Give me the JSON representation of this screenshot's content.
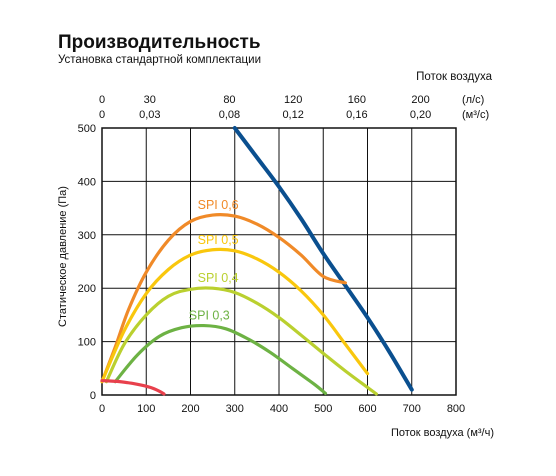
{
  "chart_data": {
    "type": "line",
    "title": "Производительность",
    "subtitle": "Установка стандартной комплектации",
    "xlabel": "Поток воздуха (м³/ч)",
    "ylabel": "Статическое давление (Па)",
    "top_axis_title": "Поток воздуха",
    "xlim": [
      0,
      800
    ],
    "ylim": [
      0,
      500
    ],
    "grid": true,
    "x_ticks": [
      "0",
      "100",
      "200",
      "300",
      "400",
      "500",
      "600",
      "700",
      "800"
    ],
    "y_ticks": [
      "0",
      "100",
      "200",
      "300",
      "400",
      "500"
    ],
    "top_ticks_ls": {
      "unit": "(л/с)",
      "labels": [
        "0",
        "30",
        "80",
        "120",
        "160",
        "200"
      ],
      "positions_m3h": [
        0,
        108,
        288,
        432,
        576,
        720
      ]
    },
    "top_ticks_m3s": {
      "unit": "(м³/с)",
      "labels": [
        "0",
        "0,03",
        "0,08",
        "0,12",
        "0,16",
        "0,20"
      ],
      "positions_m3h": [
        0,
        108,
        288,
        432,
        576,
        720
      ]
    },
    "colors": {
      "system": "#0a4f8f",
      "SPI 0,6": "#f08a28",
      "SPI 0,5": "#f9c70d",
      "SPI 0,4": "#bad02f",
      "SPI 0,3": "#6db244",
      "low": "#e8404c"
    },
    "series": [
      {
        "name": "",
        "color_key": "system",
        "x": [
          300,
          350,
          400,
          450,
          500,
          550,
          600,
          650,
          700
        ],
        "y": [
          500,
          445,
          390,
          330,
          265,
          205,
          145,
          80,
          10
        ]
      },
      {
        "name": "SPI 0,6",
        "color_key": "SPI 0,6",
        "x": [
          0,
          30,
          60,
          100,
          150,
          200,
          250,
          300,
          350,
          400,
          450,
          500,
          550
        ],
        "y": [
          25,
          90,
          160,
          230,
          290,
          325,
          337,
          335,
          320,
          295,
          262,
          222,
          210
        ]
      },
      {
        "name": "SPI 0,5",
        "color_key": "SPI 0,5",
        "x": [
          0,
          50,
          100,
          150,
          200,
          250,
          300,
          350,
          400,
          450,
          500,
          550,
          600
        ],
        "y": [
          25,
          120,
          190,
          235,
          262,
          272,
          270,
          255,
          230,
          195,
          150,
          95,
          40
        ]
      },
      {
        "name": "SPI 0,4",
        "color_key": "SPI 0,4",
        "x": [
          10,
          50,
          100,
          150,
          200,
          250,
          300,
          350,
          400,
          450,
          500,
          550,
          620
        ],
        "y": [
          25,
          95,
          150,
          185,
          198,
          200,
          192,
          172,
          145,
          112,
          78,
          45,
          2
        ]
      },
      {
        "name": "SPI 0,3",
        "color_key": "SPI 0,3",
        "x": [
          30,
          80,
          130,
          180,
          230,
          280,
          330,
          380,
          430,
          480,
          505
        ],
        "y": [
          25,
          75,
          110,
          126,
          130,
          124,
          105,
          80,
          50,
          20,
          3
        ]
      },
      {
        "name": "",
        "color_key": "low",
        "x": [
          0,
          40,
          80,
          110,
          130,
          140
        ],
        "y": [
          27,
          25,
          20,
          14,
          7,
          2
        ]
      }
    ]
  }
}
